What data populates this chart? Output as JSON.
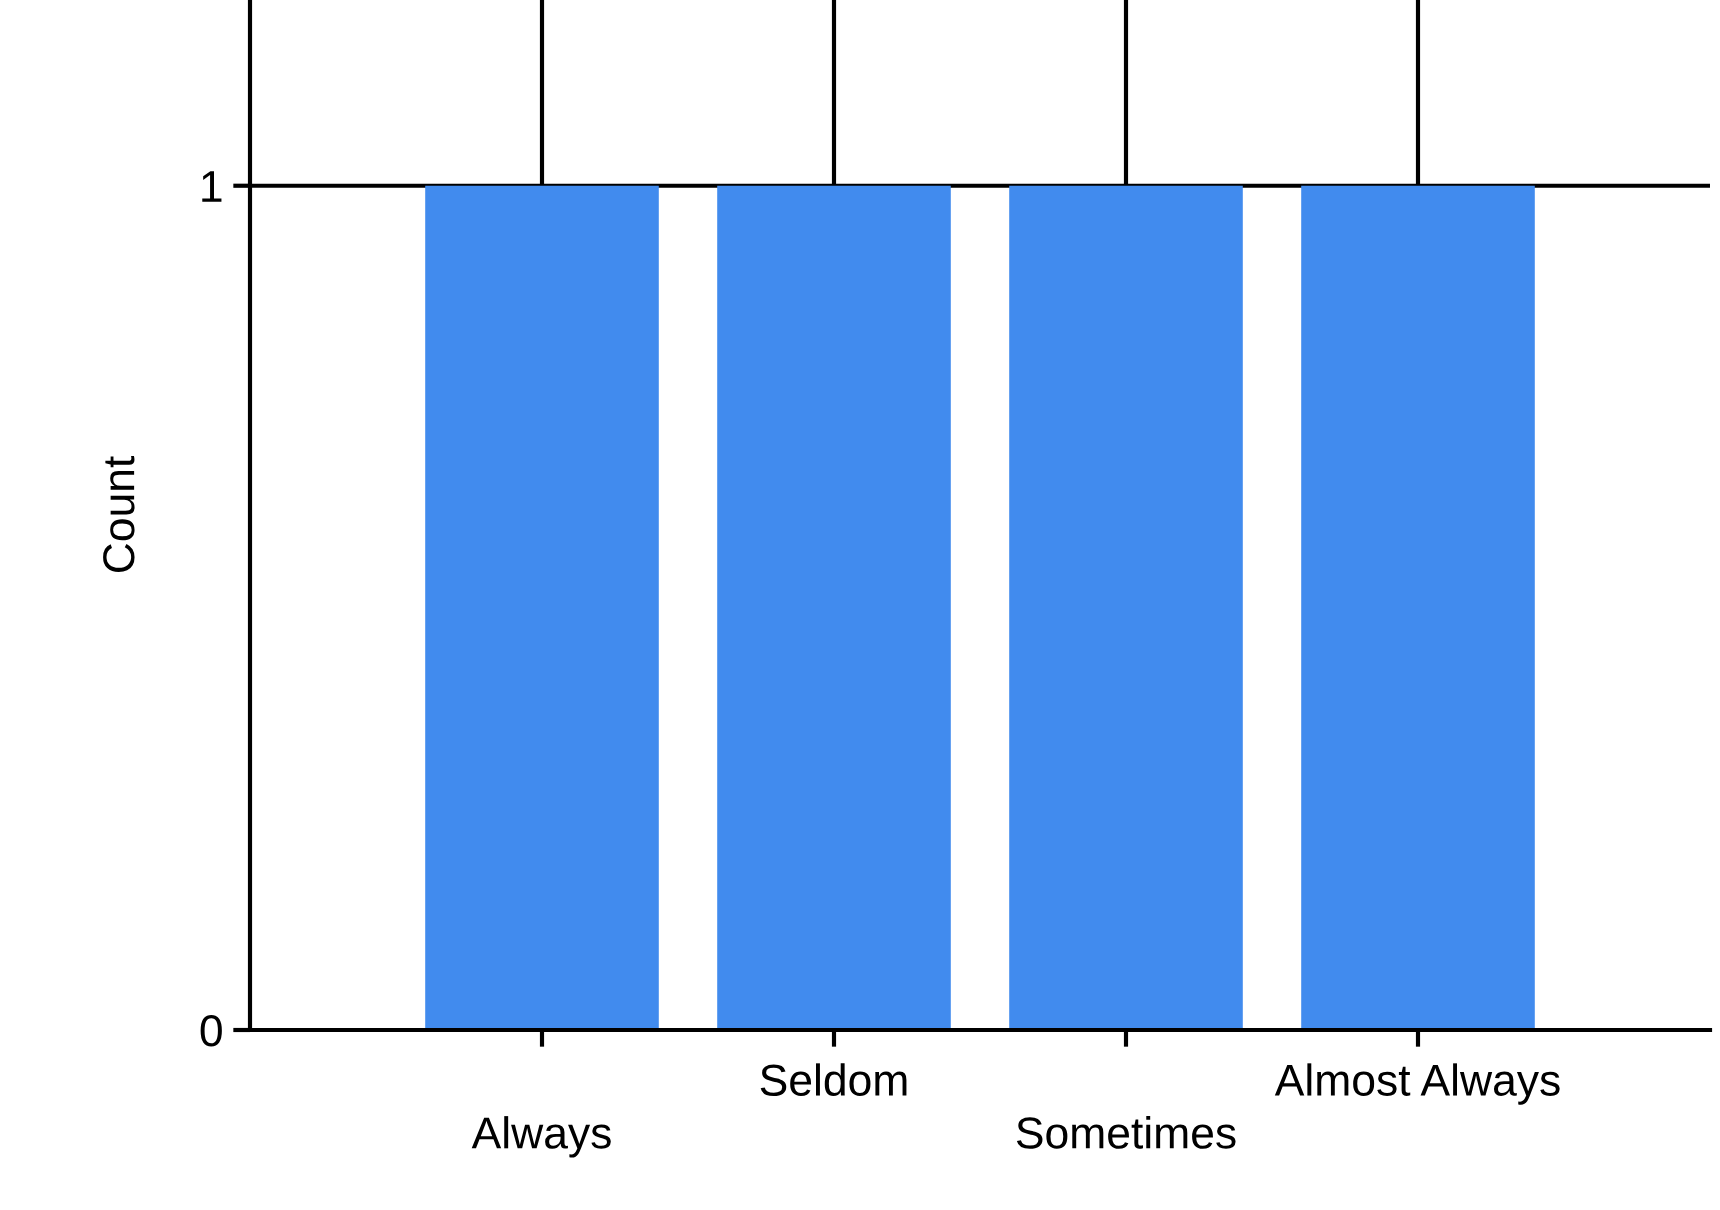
{
  "chart_data": {
    "type": "bar",
    "ylabel": "Count",
    "categories": [
      "Always",
      "Seldom",
      "Sometimes",
      "Almost Always"
    ],
    "values": [
      1,
      1,
      1,
      1
    ],
    "color": "#418bee",
    "ylim": [
      0,
      1.22
    ],
    "yticks": [
      0,
      1
    ],
    "grid": true,
    "legend": false
  }
}
